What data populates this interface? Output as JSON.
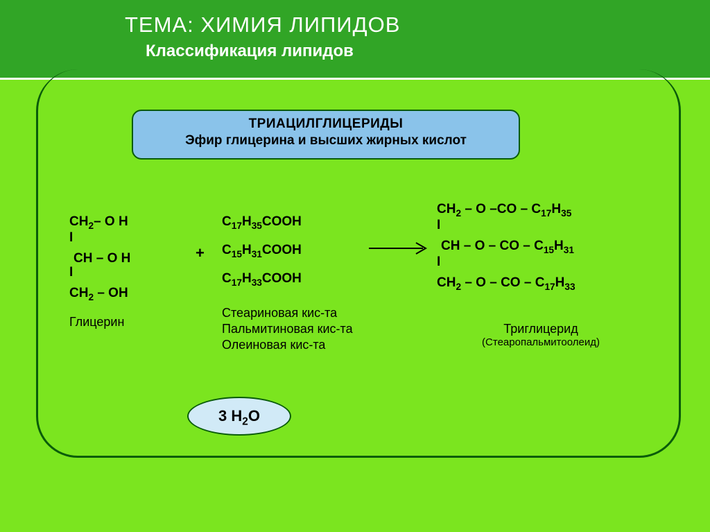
{
  "colors": {
    "background": "#7be51f",
    "header": "#31a526",
    "accent_border": "#0a5c0a",
    "box_fill": "#8ac3ea",
    "oval_fill": "#d1eaf7",
    "text_white": "#ffffff",
    "text_black": "#000000"
  },
  "header": {
    "title": "ТЕМА: ХИМИЯ ЛИПИДОВ",
    "subtitle": "Классификация липидов"
  },
  "def_box": {
    "line1": "ТРИАЦИЛГЛИЦЕРИДЫ",
    "line2": "Эфир глицерина и высших жирных кислот"
  },
  "glycerol": {
    "line1_html": "CH<sub>2</sub>– O H",
    "line2_html": "CH – O H",
    "line3_html": "CH<sub>2</sub> – OH",
    "label": "Глицерин"
  },
  "plus": "+",
  "acids": {
    "a1_html": "C<sub>17</sub>H<sub>35</sub>COOH",
    "a2_html": "C<sub>15</sub>H<sub>31</sub>COOH",
    "a3_html": "C<sub>17</sub>H<sub>33</sub>COOH",
    "labels": {
      "l1": "Стеариновая кис-та",
      "l2": "Пальмитиновая кис-та",
      "l3": "Олеиновая кис-та"
    }
  },
  "product": {
    "p1_html": "CH<sub>2</sub> – O –CO – C<sub>17</sub>H<sub>35</sub>",
    "p2_html": "CH – O – CO – C<sub>15</sub>H<sub>31</sub>",
    "p3_html": "CH<sub>2</sub> – O – CO – C<sub>17</sub>H<sub>33</sub>",
    "label_main": "Триглицерид",
    "label_sub": "(Стеаропальмитоолеид)"
  },
  "water_html": "3 H<sub>2</sub>O",
  "arrow": {
    "stroke": "#000000",
    "stroke_width": 2
  }
}
